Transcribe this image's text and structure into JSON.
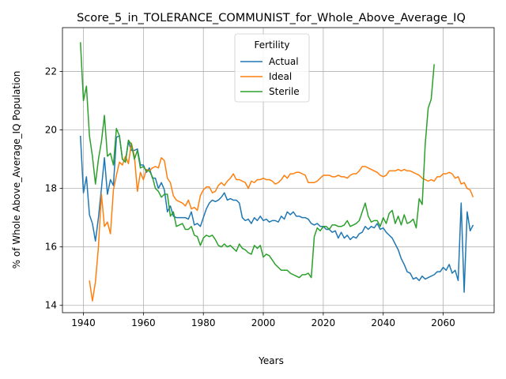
{
  "chart_data": {
    "type": "line",
    "title": "Score_5_in_TOLERANCE_COMMUNIST_for_Whole_Above_Average_IQ",
    "xlabel": "Years",
    "ylabel": "% of Whole Above_Average_IQ Population",
    "xlim": [
      1933,
      2077
    ],
    "ylim": [
      13.75,
      23.5
    ],
    "xticks": [
      1940,
      1960,
      1980,
      2000,
      2020,
      2040,
      2060
    ],
    "yticks": [
      14,
      16,
      18,
      20,
      22
    ],
    "grid": true,
    "legend": {
      "title": "Fertility",
      "placement": "top-center"
    },
    "colors": {
      "Actual": "#1f77b4",
      "Ideal": "#ff7f0e",
      "Sterile": "#2ca02c"
    },
    "series": [
      {
        "name": "Actual",
        "x": [
          1939,
          1940,
          1941,
          1942,
          1943,
          1944,
          1945,
          1946,
          1947,
          1948,
          1949,
          1950,
          1951,
          1952,
          1953,
          1954,
          1955,
          1956,
          1957,
          1958,
          1959,
          1960,
          1961,
          1962,
          1963,
          1964,
          1965,
          1966,
          1967,
          1968,
          1969,
          1970,
          1971,
          1972,
          1973,
          1974,
          1975,
          1976,
          1977,
          1978,
          1979,
          1980,
          1981,
          1982,
          1983,
          1984,
          1985,
          1986,
          1987,
          1988,
          1989,
          1990,
          1991,
          1992,
          1993,
          1994,
          1995,
          1996,
          1997,
          1998,
          1999,
          2000,
          2001,
          2002,
          2003,
          2004,
          2005,
          2006,
          2007,
          2008,
          2009,
          2010,
          2011,
          2012,
          2013,
          2014,
          2015,
          2016,
          2017,
          2018,
          2019,
          2020,
          2021,
          2022,
          2023,
          2024,
          2025,
          2026,
          2027,
          2028,
          2029,
          2030,
          2031,
          2032,
          2033,
          2034,
          2035,
          2036,
          2037,
          2038,
          2039,
          2040,
          2041,
          2042,
          2043,
          2044,
          2045,
          2046,
          2047,
          2048,
          2049,
          2050,
          2051,
          2052,
          2053,
          2054,
          2055,
          2056,
          2057,
          2058,
          2059,
          2060,
          2061,
          2062,
          2063,
          2064,
          2065,
          2066,
          2067,
          2068,
          2069,
          2070
        ],
        "y": [
          19.8,
          17.85,
          18.4,
          17.1,
          16.8,
          16.2,
          17.0,
          18.0,
          19.05,
          17.8,
          18.3,
          18.1,
          19.75,
          19.8,
          19.0,
          18.9,
          19.6,
          19.3,
          19.3,
          19.35,
          18.8,
          18.8,
          18.55,
          18.7,
          18.35,
          18.35,
          18.0,
          18.2,
          17.95,
          17.2,
          17.4,
          17.05,
          17.0,
          17.0,
          17.0,
          17.0,
          16.95,
          17.2,
          16.75,
          16.8,
          16.7,
          17.0,
          17.3,
          17.5,
          17.6,
          17.55,
          17.6,
          17.7,
          17.85,
          17.6,
          17.65,
          17.6,
          17.6,
          17.5,
          17.0,
          16.9,
          16.95,
          16.8,
          17.0,
          16.9,
          17.05,
          16.9,
          16.95,
          16.85,
          16.9,
          16.9,
          16.85,
          17.05,
          16.95,
          17.2,
          17.1,
          17.2,
          17.05,
          17.05,
          17.0,
          17.0,
          16.95,
          16.8,
          16.75,
          16.8,
          16.7,
          16.7,
          16.6,
          16.6,
          16.5,
          16.55,
          16.3,
          16.5,
          16.3,
          16.4,
          16.25,
          16.35,
          16.3,
          16.45,
          16.5,
          16.7,
          16.6,
          16.7,
          16.65,
          16.8,
          16.6,
          16.65,
          16.5,
          16.4,
          16.3,
          16.1,
          15.9,
          15.6,
          15.4,
          15.15,
          15.1,
          14.9,
          14.95,
          14.85,
          15.0,
          14.9,
          14.95,
          15.0,
          15.05,
          15.15,
          15.15,
          15.3,
          15.2,
          15.4,
          15.1,
          15.2,
          14.85,
          17.5,
          14.45,
          17.2,
          16.55,
          16.75
        ]
      },
      {
        "name": "Ideal",
        "x": [
          1942,
          1943,
          1944,
          1945,
          1946,
          1947,
          1948,
          1949,
          1950,
          1951,
          1952,
          1953,
          1954,
          1955,
          1956,
          1957,
          1958,
          1959,
          1960,
          1961,
          1962,
          1963,
          1964,
          1965,
          1966,
          1967,
          1968,
          1969,
          1970,
          1971,
          1972,
          1973,
          1974,
          1975,
          1976,
          1977,
          1978,
          1979,
          1980,
          1981,
          1982,
          1983,
          1984,
          1985,
          1986,
          1987,
          1988,
          1989,
          1990,
          1991,
          1992,
          1993,
          1994,
          1995,
          1996,
          1997,
          1998,
          1999,
          2000,
          2001,
          2002,
          2003,
          2004,
          2005,
          2006,
          2007,
          2008,
          2009,
          2010,
          2011,
          2012,
          2013,
          2014,
          2015,
          2016,
          2017,
          2018,
          2019,
          2020,
          2021,
          2022,
          2023,
          2024,
          2025,
          2026,
          2027,
          2028,
          2029,
          2030,
          2031,
          2032,
          2033,
          2034,
          2035,
          2036,
          2037,
          2038,
          2039,
          2040,
          2041,
          2042,
          2043,
          2044,
          2045,
          2046,
          2047,
          2048,
          2049,
          2050,
          2051,
          2052,
          2053,
          2054,
          2055,
          2056,
          2057,
          2058,
          2059,
          2060,
          2061,
          2062,
          2063,
          2064,
          2065,
          2066,
          2067,
          2068,
          2069,
          2070
        ],
        "y": [
          14.85,
          14.15,
          14.8,
          16.0,
          17.8,
          16.7,
          16.85,
          16.45,
          17.95,
          18.45,
          18.9,
          18.8,
          19.1,
          18.85,
          19.55,
          19.1,
          17.9,
          18.55,
          18.3,
          18.65,
          18.6,
          18.7,
          18.75,
          18.7,
          19.05,
          18.95,
          18.35,
          18.2,
          17.75,
          17.6,
          17.55,
          17.5,
          17.4,
          17.6,
          17.3,
          17.35,
          17.25,
          17.75,
          17.95,
          18.05,
          18.05,
          17.85,
          17.9,
          18.1,
          18.2,
          18.1,
          18.25,
          18.35,
          18.5,
          18.3,
          18.3,
          18.25,
          18.2,
          18.0,
          18.25,
          18.2,
          18.3,
          18.3,
          18.35,
          18.3,
          18.3,
          18.25,
          18.15,
          18.2,
          18.3,
          18.45,
          18.35,
          18.5,
          18.5,
          18.55,
          18.55,
          18.5,
          18.45,
          18.2,
          18.2,
          18.2,
          18.25,
          18.35,
          18.45,
          18.45,
          18.45,
          18.4,
          18.4,
          18.45,
          18.4,
          18.4,
          18.35,
          18.45,
          18.5,
          18.5,
          18.6,
          18.75,
          18.75,
          18.7,
          18.65,
          18.6,
          18.55,
          18.45,
          18.4,
          18.45,
          18.6,
          18.6,
          18.6,
          18.65,
          18.6,
          18.65,
          18.6,
          18.6,
          18.55,
          18.5,
          18.45,
          18.35,
          18.3,
          18.25,
          18.3,
          18.25,
          18.4,
          18.4,
          18.5,
          18.5,
          18.55,
          18.5,
          18.35,
          18.4,
          18.15,
          18.2,
          18.0,
          17.95,
          17.7
        ]
      },
      {
        "name": "Sterile",
        "x": [
          1939,
          1940,
          1941,
          1942,
          1943,
          1944,
          1945,
          1946,
          1947,
          1948,
          1949,
          1950,
          1951,
          1952,
          1953,
          1954,
          1955,
          1956,
          1957,
          1958,
          1959,
          1960,
          1961,
          1962,
          1963,
          1964,
          1965,
          1966,
          1967,
          1968,
          1969,
          1970,
          1971,
          1972,
          1973,
          1974,
          1975,
          1976,
          1977,
          1978,
          1979,
          1980,
          1981,
          1982,
          1983,
          1984,
          1985,
          1986,
          1987,
          1988,
          1989,
          1990,
          1991,
          1992,
          1993,
          1994,
          1995,
          1996,
          1997,
          1998,
          1999,
          2000,
          2001,
          2002,
          2003,
          2004,
          2005,
          2006,
          2007,
          2008,
          2009,
          2010,
          2011,
          2012,
          2013,
          2014,
          2015,
          2016,
          2017,
          2018,
          2019,
          2020,
          2021,
          2022,
          2023,
          2024,
          2025,
          2026,
          2027,
          2028,
          2029,
          2030,
          2031,
          2032,
          2033,
          2034,
          2035,
          2036,
          2037,
          2038,
          2039,
          2040,
          2041,
          2042,
          2043,
          2044,
          2045,
          2046,
          2047,
          2048,
          2049,
          2050,
          2051,
          2052,
          2053,
          2054,
          2055,
          2056,
          2057
        ],
        "y": [
          23.0,
          21.0,
          21.5,
          19.8,
          19.1,
          18.15,
          19.0,
          19.6,
          20.5,
          19.1,
          19.2,
          18.8,
          20.05,
          19.8,
          19.0,
          18.9,
          19.65,
          19.5,
          19.0,
          19.3,
          18.7,
          18.75,
          18.6,
          18.6,
          18.4,
          18.0,
          17.9,
          17.7,
          17.8,
          17.8,
          17.05,
          17.2,
          16.7,
          16.75,
          16.8,
          16.6,
          16.6,
          16.7,
          16.4,
          16.35,
          16.05,
          16.3,
          16.4,
          16.35,
          16.4,
          16.25,
          16.05,
          16.0,
          16.1,
          16.0,
          16.05,
          15.95,
          15.85,
          16.1,
          15.95,
          15.9,
          15.8,
          15.75,
          16.05,
          15.95,
          16.05,
          15.65,
          15.75,
          15.7,
          15.55,
          15.4,
          15.3,
          15.2,
          15.2,
          15.2,
          15.1,
          15.05,
          15.0,
          14.95,
          15.05,
          15.05,
          15.1,
          14.95,
          16.35,
          16.65,
          16.55,
          16.7,
          16.7,
          16.6,
          16.75,
          16.75,
          16.7,
          16.7,
          16.75,
          16.9,
          16.7,
          16.75,
          16.8,
          16.9,
          17.2,
          17.5,
          17.05,
          16.85,
          16.9,
          16.9,
          16.7,
          17.0,
          16.8,
          17.15,
          17.25,
          16.8,
          17.05,
          16.75,
          17.1,
          16.8,
          16.85,
          16.95,
          16.65,
          17.65,
          17.45,
          19.5,
          20.75,
          21.05,
          22.25
        ]
      }
    ]
  }
}
